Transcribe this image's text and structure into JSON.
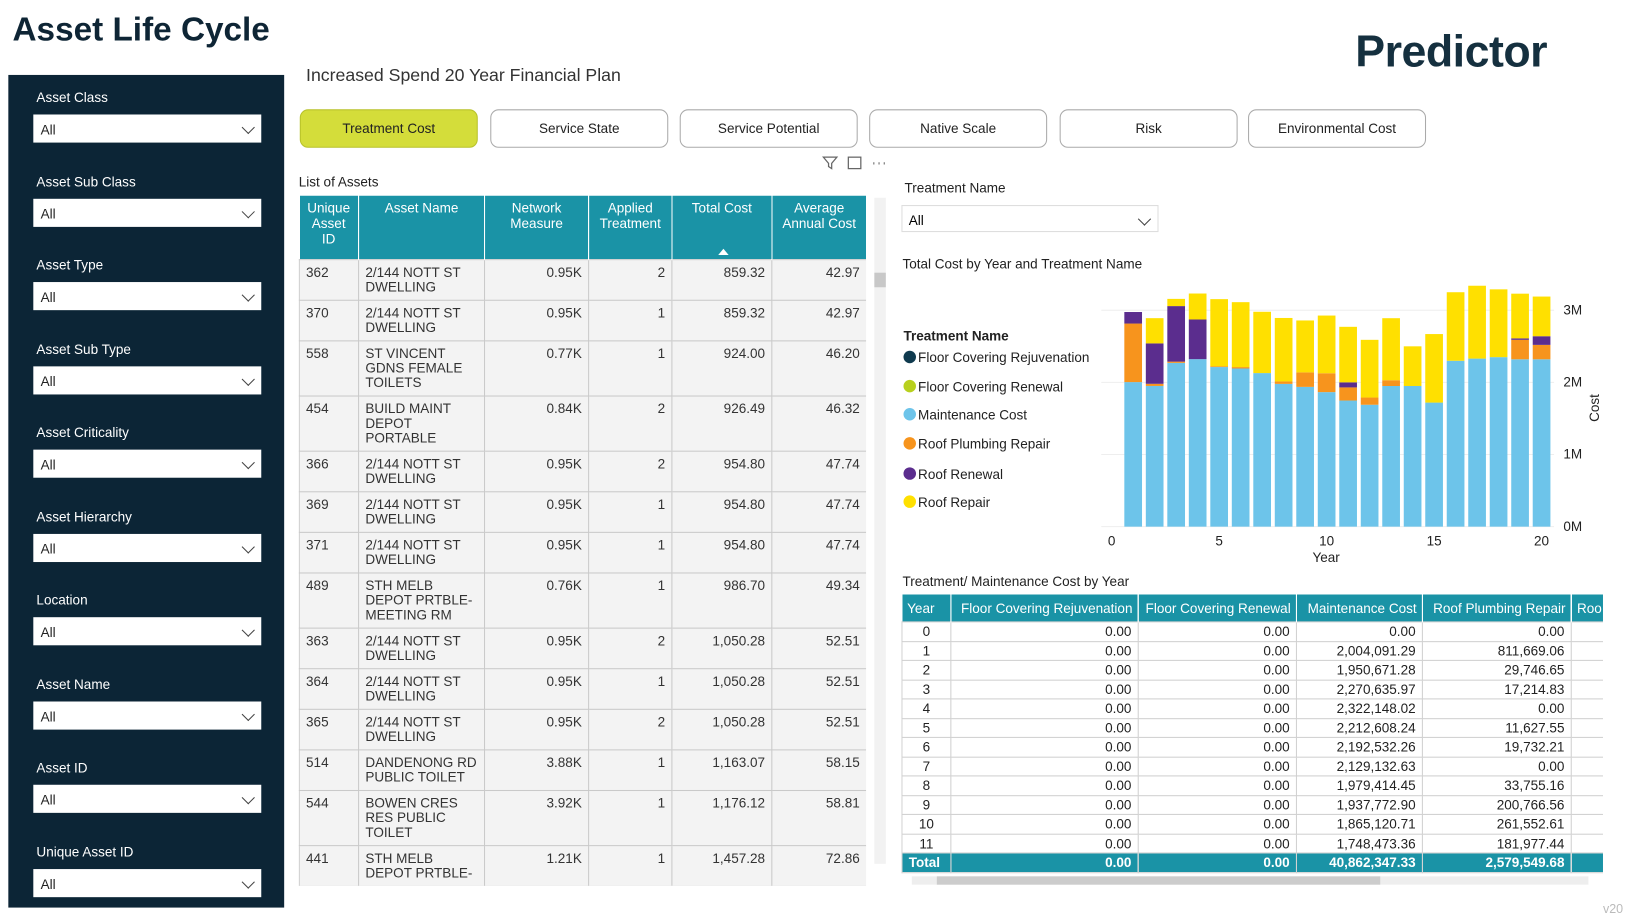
{
  "header": {
    "title": "Asset Life Cycle",
    "logo": "Predictor",
    "subtitle": "Increased Spend 20 Year Financial Plan",
    "version": "v20"
  },
  "filters": [
    {
      "label": "Asset Class",
      "value": "All"
    },
    {
      "label": "Asset Sub Class",
      "value": "All"
    },
    {
      "label": "Asset Type",
      "value": "All"
    },
    {
      "label": "Asset Sub Type",
      "value": "All"
    },
    {
      "label": "Asset Criticality",
      "value": "All"
    },
    {
      "label": "Asset Hierarchy",
      "value": "All"
    },
    {
      "label": "Location",
      "value": "All"
    },
    {
      "label": "Asset Name",
      "value": "All"
    },
    {
      "label": "Asset ID",
      "value": "All"
    },
    {
      "label": "Unique Asset ID",
      "value": "All"
    }
  ],
  "tabs": [
    "Treatment Cost",
    "Service State",
    "Service Potential",
    "Native Scale",
    "Risk",
    "Environmental Cost"
  ],
  "assets_table": {
    "title": "List of Assets",
    "columns": [
      "Unique Asset ID",
      "Asset Name",
      "Network Measure",
      "Applied Treatment",
      "Total Cost",
      "Average Annual Cost"
    ],
    "rows": [
      [
        "362",
        "2/144 NOTT ST DWELLING",
        "0.95K",
        "2",
        "859.32",
        "42.97"
      ],
      [
        "370",
        "2/144 NOTT ST DWELLING",
        "0.95K",
        "1",
        "859.32",
        "42.97"
      ],
      [
        "558",
        "ST VINCENT GDNS FEMALE TOILETS",
        "0.77K",
        "1",
        "924.00",
        "46.20"
      ],
      [
        "454",
        "BUILD MAINT DEPOT PORTABLE",
        "0.84K",
        "2",
        "926.49",
        "46.32"
      ],
      [
        "366",
        "2/144 NOTT ST DWELLING",
        "0.95K",
        "2",
        "954.80",
        "47.74"
      ],
      [
        "369",
        "2/144 NOTT ST DWELLING",
        "0.95K",
        "1",
        "954.80",
        "47.74"
      ],
      [
        "371",
        "2/144 NOTT ST DWELLING",
        "0.95K",
        "1",
        "954.80",
        "47.74"
      ],
      [
        "489",
        "STH MELB DEPOT PRTBLE-MEETING RM",
        "0.76K",
        "1",
        "986.70",
        "49.34"
      ],
      [
        "363",
        "2/144 NOTT ST DWELLING",
        "0.95K",
        "2",
        "1,050.28",
        "52.51"
      ],
      [
        "364",
        "2/144 NOTT ST DWELLING",
        "0.95K",
        "1",
        "1,050.28",
        "52.51"
      ],
      [
        "365",
        "2/144 NOTT ST DWELLING",
        "0.95K",
        "2",
        "1,050.28",
        "52.51"
      ],
      [
        "514",
        "DANDENONG RD PUBLIC TOILET",
        "3.88K",
        "1",
        "1,163.07",
        "58.15"
      ],
      [
        "544",
        "BOWEN CRES RES PUBLIC TOILET",
        "3.92K",
        "1",
        "1,176.12",
        "58.81"
      ],
      [
        "441",
        "STH MELB DEPOT PRTBLE-",
        "1.21K",
        "1",
        "1,457.28",
        "72.86"
      ]
    ]
  },
  "treatment_filter": {
    "label": "Treatment Name",
    "value": "All"
  },
  "chart_data": {
    "type": "bar",
    "stacked": true,
    "title": "Total Cost by Year and Treatment Name",
    "legend_title": "Treatment Name",
    "x_label": "Year",
    "y_label": "Cost",
    "x": [
      0,
      1,
      2,
      3,
      4,
      5,
      6,
      7,
      8,
      9,
      10,
      11,
      12,
      13,
      14,
      15,
      16,
      17,
      18,
      19,
      20
    ],
    "series": [
      {
        "name": "Floor Covering Rejuvenation",
        "color": "#0f3a4e",
        "values": [
          0,
          0,
          0,
          0,
          0,
          0,
          0,
          0,
          0,
          0,
          0,
          0,
          0,
          0,
          0,
          0,
          0,
          0,
          0,
          0,
          0
        ]
      },
      {
        "name": "Floor Covering Renewal",
        "color": "#b8d01e",
        "values": [
          0,
          0,
          0,
          0,
          0,
          0,
          0,
          0,
          0,
          0,
          0,
          0,
          0,
          0,
          0,
          0,
          0,
          0,
          0,
          0,
          0
        ]
      },
      {
        "name": "Maintenance Cost",
        "color": "#6dc4ea",
        "values": [
          0,
          2004091.29,
          1950671.28,
          2270635.97,
          2322148.02,
          2212608.24,
          2192532.26,
          2129132.63,
          1979414.45,
          1937772.9,
          1865120.71,
          1748473.36,
          1690000,
          1950000,
          1950000,
          1720000,
          2300000,
          2330000,
          2350000,
          2320000,
          2320000
        ]
      },
      {
        "name": "Roof Plumbing Repair",
        "color": "#f7941d",
        "values": [
          0,
          811669.06,
          29746.65,
          17214.83,
          0,
          11627.55,
          19732.21,
          0,
          33755.16,
          200766.56,
          261552.61,
          181977.44,
          100000,
          80000,
          0,
          0,
          0,
          0,
          0,
          270000,
          200000
        ]
      },
      {
        "name": "Roof Renewal",
        "color": "#5b2d8e",
        "values": [
          0,
          160000,
          560000,
          770000,
          550000,
          0,
          0,
          0,
          0,
          0,
          0,
          70000,
          0,
          0,
          0,
          0,
          0,
          0,
          0,
          20000,
          120000
        ]
      },
      {
        "name": "Roof Repair",
        "color": "#ffe000",
        "values": [
          0,
          0,
          350000,
          100000,
          360000,
          930000,
          900000,
          850000,
          880000,
          720000,
          800000,
          770000,
          800000,
          860000,
          550000,
          950000,
          950000,
          1010000,
          940000,
          620000,
          550000
        ]
      }
    ],
    "xlim": [
      0,
      20
    ],
    "xticks": [
      0,
      5,
      10,
      15,
      20
    ],
    "ylim": [
      0,
      3250000
    ],
    "yticks": [
      {
        "value": 0,
        "label": "0M"
      },
      {
        "value": 1000000,
        "label": "1M"
      },
      {
        "value": 2000000,
        "label": "2M"
      },
      {
        "value": 3000000,
        "label": "3M"
      }
    ],
    "grid": true,
    "legend": "left"
  },
  "cost_table": {
    "title": "Treatment/ Maintenance Cost by Year",
    "columns": [
      "Year",
      "Floor Covering Rejuvenation",
      "Floor Covering Renewal",
      "Maintenance Cost",
      "Roof Plumbing Repair",
      "Roo"
    ],
    "rows": [
      [
        "0",
        "0.00",
        "0.00",
        "0.00",
        "0.00"
      ],
      [
        "1",
        "0.00",
        "0.00",
        "2,004,091.29",
        "811,669.06"
      ],
      [
        "2",
        "0.00",
        "0.00",
        "1,950,671.28",
        "29,746.65"
      ],
      [
        "3",
        "0.00",
        "0.00",
        "2,270,635.97",
        "17,214.83"
      ],
      [
        "4",
        "0.00",
        "0.00",
        "2,322,148.02",
        "0.00"
      ],
      [
        "5",
        "0.00",
        "0.00",
        "2,212,608.24",
        "11,627.55"
      ],
      [
        "6",
        "0.00",
        "0.00",
        "2,192,532.26",
        "19,732.21"
      ],
      [
        "7",
        "0.00",
        "0.00",
        "2,129,132.63",
        "0.00"
      ],
      [
        "8",
        "0.00",
        "0.00",
        "1,979,414.45",
        "33,755.16"
      ],
      [
        "9",
        "0.00",
        "0.00",
        "1,937,772.90",
        "200,766.56"
      ],
      [
        "10",
        "0.00",
        "0.00",
        "1,865,120.71",
        "261,552.61"
      ],
      [
        "11",
        "0.00",
        "0.00",
        "1,748,473.36",
        "181,977.44"
      ]
    ],
    "total": [
      "Total",
      "0.00",
      "0.00",
      "40,862,347.33",
      "2,579,549.68"
    ]
  }
}
